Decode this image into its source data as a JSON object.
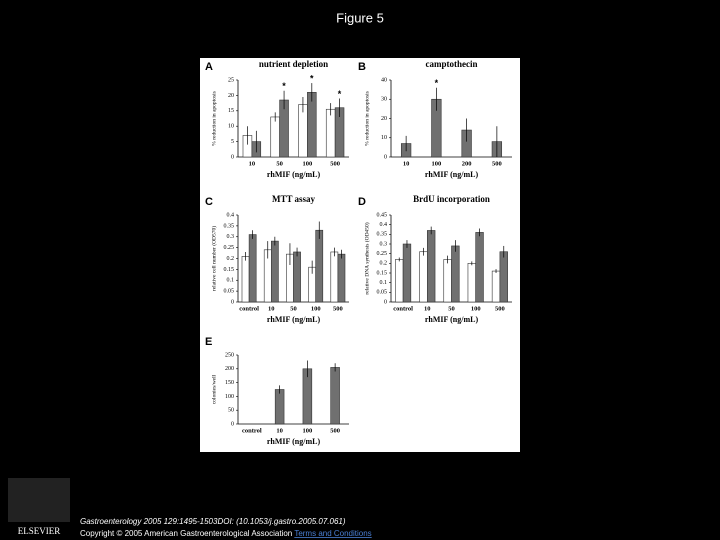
{
  "title": "Figure 5",
  "footer": {
    "citation": "Gastroenterology 2005 129:1495-1503DOI: (10.1053/j.gastro.2005.07.061)",
    "copyright": "Copyright © 2005 American Gastroenterological Association",
    "link": "Terms and Conditions",
    "logo": "ELSEVIER"
  },
  "chart_data": [
    {
      "type": "bar",
      "label": "A",
      "title": "nutrient depletion",
      "ylabel": "% reduction in apoptosis",
      "xlabel": "rhMIF (ng/mL)",
      "categories": [
        "10",
        "50",
        "100",
        "500"
      ],
      "series": [
        {
          "color": "#ffffff",
          "values": [
            7,
            13,
            17,
            15.5
          ],
          "errors": [
            3,
            1.5,
            2.5,
            2
          ]
        },
        {
          "color": "#707070",
          "values": [
            5,
            18.5,
            21,
            16
          ],
          "errors": [
            3.5,
            3,
            3,
            3
          ],
          "significance": [
            null,
            "*",
            "*",
            "*"
          ]
        }
      ],
      "ylim": [
        0,
        25
      ],
      "yticks": [
        0,
        5,
        10,
        15,
        20,
        25
      ]
    },
    {
      "type": "bar",
      "label": "B",
      "title": "camptothecin",
      "ylabel": "% reduction in apoptosis",
      "xlabel": "rhMIF (ng/mL)",
      "categories": [
        "10",
        "100",
        "200",
        "500"
      ],
      "series": [
        {
          "color": "#707070",
          "values": [
            7,
            30,
            14,
            8
          ],
          "errors": [
            4,
            6,
            6,
            8
          ],
          "significance": [
            null,
            "*",
            null,
            null
          ]
        }
      ],
      "ylim": [
        0,
        40
      ],
      "yticks": [
        0,
        10,
        20,
        30,
        40
      ]
    },
    {
      "type": "bar",
      "label": "C",
      "title": "MTT assay",
      "ylabel": "relative cell number (OD570)",
      "xlabel": "rhMIF (ng/mL)",
      "categories": [
        "control",
        "10",
        "50",
        "100",
        "500"
      ],
      "series": [
        {
          "color": "#ffffff",
          "values": [
            0.21,
            0.24,
            0.22,
            0.16,
            0.23
          ],
          "errors": [
            0.02,
            0.04,
            0.05,
            0.03,
            0.02
          ]
        },
        {
          "color": "#707070",
          "values": [
            0.31,
            0.28,
            0.23,
            0.33,
            0.22
          ],
          "errors": [
            0.02,
            0.02,
            0.02,
            0.04,
            0.02
          ]
        }
      ],
      "ylim": [
        0,
        0.4
      ],
      "yticks": [
        0,
        0.05,
        0.1,
        0.15,
        0.2,
        0.25,
        0.3,
        0.35,
        0.4
      ]
    },
    {
      "type": "bar",
      "label": "D",
      "title": "BrdU incorporation",
      "ylabel": "relative DNA synthesis (OD450)",
      "xlabel": "rhMIF (ng/mL)",
      "categories": [
        "control",
        "10",
        "50",
        "100",
        "500"
      ],
      "series": [
        {
          "color": "#ffffff",
          "values": [
            0.22,
            0.26,
            0.22,
            0.2,
            0.16
          ],
          "errors": [
            0.01,
            0.02,
            0.02,
            0.01,
            0.01
          ]
        },
        {
          "color": "#707070",
          "values": [
            0.3,
            0.37,
            0.29,
            0.36,
            0.26
          ],
          "errors": [
            0.02,
            0.02,
            0.03,
            0.02,
            0.03
          ]
        }
      ],
      "ylim": [
        0,
        0.45
      ],
      "yticks": [
        0,
        0.05,
        0.1,
        0.15,
        0.2,
        0.25,
        0.3,
        0.35,
        0.4,
        0.45
      ]
    },
    {
      "type": "bar",
      "label": "E",
      "ylabel": "colonies/well",
      "xlabel": "rhMIF (ng/mL)",
      "categories": [
        "control",
        "10",
        "100",
        "500"
      ],
      "series": [
        {
          "color": "#707070",
          "values": [
            null,
            125,
            200,
            205
          ],
          "errors": [
            null,
            15,
            30,
            15
          ]
        }
      ],
      "ylim": [
        0,
        250
      ],
      "yticks": [
        0,
        50,
        100,
        150,
        200,
        250
      ]
    }
  ]
}
